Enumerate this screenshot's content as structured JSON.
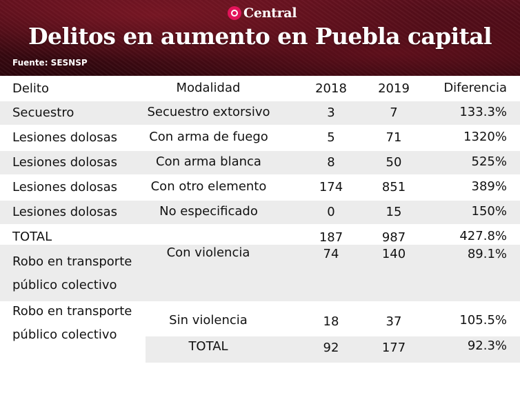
{
  "brand": {
    "name": "Central"
  },
  "title": "Delitos en aumento en Puebla capital",
  "source": "Fuente: SESNSP",
  "table": {
    "headers": {
      "delito": "Delito",
      "modalidad": "Modalidad",
      "y2018": "2018",
      "y2019": "2019",
      "diferencia": "Diferencia"
    },
    "rows": [
      {
        "delito": "Secuestro",
        "modalidad": "Secuestro extorsivo",
        "y2018": "3",
        "y2019": "7",
        "diferencia": "133.3%"
      },
      {
        "delito": "Lesiones dolosas",
        "modalidad": "Con arma de fuego",
        "y2018": "5",
        "y2019": "71",
        "diferencia": "1320%"
      },
      {
        "delito": "Lesiones dolosas",
        "modalidad": "Con arma blanca",
        "y2018": "8",
        "y2019": "50",
        "diferencia": "525%"
      },
      {
        "delito": "Lesiones dolosas",
        "modalidad": "Con otro elemento",
        "y2018": "174",
        "y2019": "851",
        "diferencia": "389%"
      },
      {
        "delito": "Lesiones dolosas",
        "modalidad": "No especificado",
        "y2018": "0",
        "y2019": "15",
        "diferencia": "150%"
      }
    ],
    "total1": {
      "label": "TOTAL",
      "y2018": "187",
      "y2019": "987",
      "diferencia": "427.8%"
    },
    "robo1": {
      "delito": "Robo en transporte público colectivo",
      "modalidad": "Con violencia",
      "y2018": "74",
      "y2019": "140",
      "diferencia": "89.1%"
    },
    "robo2": {
      "delito": "Robo en transporte público colectivo",
      "modalidad": "Sin violencia",
      "y2018": "18",
      "y2019": "37",
      "diferencia": "105.5%"
    },
    "total2": {
      "label": "TOTAL",
      "y2018": "92",
      "y2019": "177",
      "diferencia": "92.3%"
    }
  }
}
